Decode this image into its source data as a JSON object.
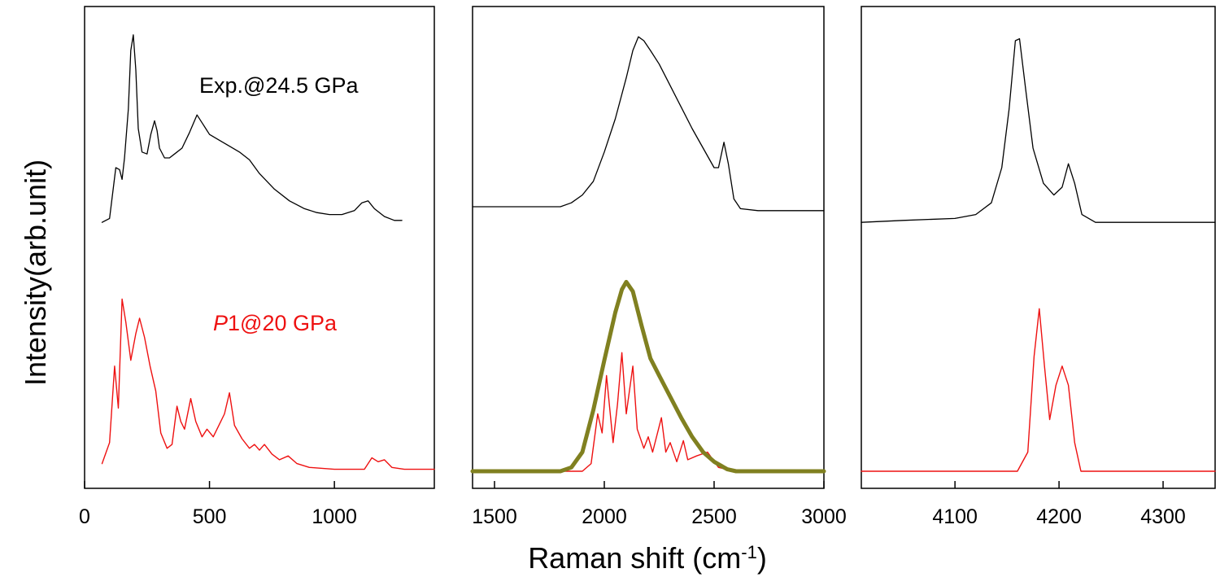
{
  "chart_data": {
    "type": "line",
    "xlabel": "Raman shift (cm",
    "xlabel_superscript": "-1",
    "xlabel_close": ")",
    "ylabel": "Intensity(arb.unit)",
    "grid": false,
    "colors": {
      "experiment": "#000000",
      "theory": "#ee1111",
      "envelope": "#808020"
    },
    "annotations": [
      {
        "text": "Exp.@24.5 GPa",
        "color": "#000000"
      },
      {
        "text_italic": "P",
        "text": "1@20 GPa",
        "color": "#ee1111"
      }
    ],
    "panels": [
      {
        "xlim": [
          0,
          1400
        ],
        "ticks": [
          0,
          500,
          1000
        ],
        "tick_labels": [
          "0",
          "500",
          "1000"
        ],
        "series": [
          {
            "role": "experiment",
            "points": [
              [
                70,
                0.02
              ],
              [
                100,
                0.04
              ],
              [
                125,
                0.3
              ],
              [
                140,
                0.29
              ],
              [
                150,
                0.24
              ],
              [
                160,
                0.35
              ],
              [
                175,
                0.6
              ],
              [
                185,
                0.9
              ],
              [
                195,
                0.98
              ],
              [
                205,
                0.8
              ],
              [
                215,
                0.5
              ],
              [
                230,
                0.38
              ],
              [
                250,
                0.37
              ],
              [
                265,
                0.47
              ],
              [
                280,
                0.54
              ],
              [
                290,
                0.49
              ],
              [
                300,
                0.4
              ],
              [
                320,
                0.35
              ],
              [
                340,
                0.35
              ],
              [
                360,
                0.37
              ],
              [
                390,
                0.4
              ],
              [
                420,
                0.48
              ],
              [
                450,
                0.57
              ],
              [
                470,
                0.53
              ],
              [
                500,
                0.47
              ],
              [
                540,
                0.44
              ],
              [
                580,
                0.41
              ],
              [
                620,
                0.38
              ],
              [
                660,
                0.34
              ],
              [
                700,
                0.27
              ],
              [
                760,
                0.19
              ],
              [
                820,
                0.13
              ],
              [
                880,
                0.09
              ],
              [
                930,
                0.07
              ],
              [
                980,
                0.06
              ],
              [
                1030,
                0.06
              ],
              [
                1080,
                0.08
              ],
              [
                1110,
                0.12
              ],
              [
                1135,
                0.13
              ],
              [
                1160,
                0.09
              ],
              [
                1200,
                0.05
              ],
              [
                1240,
                0.03
              ],
              [
                1270,
                0.03
              ]
            ]
          },
          {
            "role": "theory",
            "points": [
              [
                70,
                0.04
              ],
              [
                100,
                0.15
              ],
              [
                120,
                0.55
              ],
              [
                135,
                0.33
              ],
              [
                150,
                0.9
              ],
              [
                165,
                0.78
              ],
              [
                185,
                0.58
              ],
              [
                205,
                0.72
              ],
              [
                220,
                0.8
              ],
              [
                240,
                0.7
              ],
              [
                262,
                0.55
              ],
              [
                285,
                0.42
              ],
              [
                305,
                0.2
              ],
              [
                330,
                0.12
              ],
              [
                350,
                0.14
              ],
              [
                370,
                0.34
              ],
              [
                385,
                0.26
              ],
              [
                400,
                0.22
              ],
              [
                425,
                0.38
              ],
              [
                445,
                0.26
              ],
              [
                470,
                0.18
              ],
              [
                490,
                0.22
              ],
              [
                515,
                0.18
              ],
              [
                545,
                0.26
              ],
              [
                560,
                0.3
              ],
              [
                580,
                0.41
              ],
              [
                600,
                0.24
              ],
              [
                630,
                0.17
              ],
              [
                660,
                0.12
              ],
              [
                680,
                0.14
              ],
              [
                700,
                0.11
              ],
              [
                720,
                0.14
              ],
              [
                750,
                0.09
              ],
              [
                780,
                0.06
              ],
              [
                815,
                0.08
              ],
              [
                850,
                0.04
              ],
              [
                900,
                0.02
              ],
              [
                1000,
                0.01
              ],
              [
                1120,
                0.01
              ],
              [
                1150,
                0.07
              ],
              [
                1175,
                0.05
              ],
              [
                1200,
                0.06
              ],
              [
                1230,
                0.02
              ],
              [
                1280,
                0.01
              ],
              [
                1400,
                0.01
              ]
            ]
          }
        ]
      },
      {
        "xlim": [
          1400,
          3000
        ],
        "ticks": [
          1500,
          2000,
          2500,
          3000
        ],
        "tick_labels": [
          "1500",
          "2000",
          "2500",
          "3000"
        ],
        "series": [
          {
            "role": "experiment",
            "points": [
              [
                1400,
                0.1
              ],
              [
                1800,
                0.1
              ],
              [
                1850,
                0.12
              ],
              [
                1900,
                0.16
              ],
              [
                1950,
                0.23
              ],
              [
                2000,
                0.38
              ],
              [
                2050,
                0.55
              ],
              [
                2100,
                0.76
              ],
              [
                2130,
                0.9
              ],
              [
                2155,
                0.97
              ],
              [
                2180,
                0.95
              ],
              [
                2210,
                0.9
              ],
              [
                2250,
                0.83
              ],
              [
                2300,
                0.72
              ],
              [
                2350,
                0.61
              ],
              [
                2400,
                0.5
              ],
              [
                2450,
                0.4
              ],
              [
                2500,
                0.3
              ],
              [
                2520,
                0.3
              ],
              [
                2545,
                0.43
              ],
              [
                2565,
                0.32
              ],
              [
                2590,
                0.14
              ],
              [
                2620,
                0.09
              ],
              [
                2700,
                0.08
              ],
              [
                3000,
                0.08
              ]
            ]
          },
          {
            "role": "theory",
            "points": [
              [
                1400,
                0.0
              ],
              [
                1900,
                0.0
              ],
              [
                1940,
                0.04
              ],
              [
                1970,
                0.3
              ],
              [
                1990,
                0.2
              ],
              [
                2010,
                0.5
              ],
              [
                2040,
                0.15
              ],
              [
                2060,
                0.35
              ],
              [
                2080,
                0.62
              ],
              [
                2100,
                0.3
              ],
              [
                2130,
                0.55
              ],
              [
                2150,
                0.22
              ],
              [
                2180,
                0.12
              ],
              [
                2200,
                0.18
              ],
              [
                2220,
                0.1
              ],
              [
                2260,
                0.28
              ],
              [
                2280,
                0.1
              ],
              [
                2300,
                0.15
              ],
              [
                2330,
                0.05
              ],
              [
                2360,
                0.16
              ],
              [
                2380,
                0.06
              ],
              [
                2420,
                0.08
              ],
              [
                2470,
                0.1
              ],
              [
                2520,
                0.02
              ],
              [
                2600,
                0.0
              ],
              [
                3000,
                0.0
              ]
            ]
          },
          {
            "role": "envelope",
            "points": [
              [
                1400,
                0.0
              ],
              [
                1800,
                0.0
              ],
              [
                1850,
                0.02
              ],
              [
                1900,
                0.1
              ],
              [
                1950,
                0.32
              ],
              [
                2000,
                0.58
              ],
              [
                2050,
                0.83
              ],
              [
                2080,
                0.95
              ],
              [
                2100,
                0.99
              ],
              [
                2130,
                0.94
              ],
              [
                2170,
                0.76
              ],
              [
                2210,
                0.59
              ],
              [
                2250,
                0.5
              ],
              [
                2300,
                0.39
              ],
              [
                2350,
                0.28
              ],
              [
                2400,
                0.18
              ],
              [
                2450,
                0.1
              ],
              [
                2500,
                0.05
              ],
              [
                2560,
                0.01
              ],
              [
                2600,
                0.0
              ],
              [
                3000,
                0.0
              ]
            ]
          }
        ]
      },
      {
        "xlim": [
          4010,
          4350
        ],
        "ticks": [
          4100,
          4200,
          4300
        ],
        "tick_labels": [
          "4100",
          "4200",
          "4300"
        ],
        "series": [
          {
            "role": "experiment",
            "points": [
              [
                4010,
                0.02
              ],
              [
                4050,
                0.03
              ],
              [
                4100,
                0.04
              ],
              [
                4120,
                0.06
              ],
              [
                4135,
                0.12
              ],
              [
                4145,
                0.3
              ],
              [
                4152,
                0.6
              ],
              [
                4158,
                0.95
              ],
              [
                4162,
                0.96
              ],
              [
                4168,
                0.7
              ],
              [
                4175,
                0.4
              ],
              [
                4185,
                0.22
              ],
              [
                4195,
                0.16
              ],
              [
                4203,
                0.2
              ],
              [
                4209,
                0.32
              ],
              [
                4215,
                0.22
              ],
              [
                4222,
                0.06
              ],
              [
                4235,
                0.02
              ],
              [
                4300,
                0.02
              ],
              [
                4350,
                0.02
              ]
            ]
          },
          {
            "role": "theory",
            "points": [
              [
                4010,
                0.0
              ],
              [
                4160,
                0.0
              ],
              [
                4170,
                0.1
              ],
              [
                4176,
                0.6
              ],
              [
                4181,
                0.85
              ],
              [
                4186,
                0.55
              ],
              [
                4191,
                0.27
              ],
              [
                4197,
                0.45
              ],
              [
                4203,
                0.55
              ],
              [
                4209,
                0.45
              ],
              [
                4215,
                0.15
              ],
              [
                4221,
                0.0
              ],
              [
                4350,
                0.0
              ]
            ]
          }
        ]
      }
    ]
  }
}
